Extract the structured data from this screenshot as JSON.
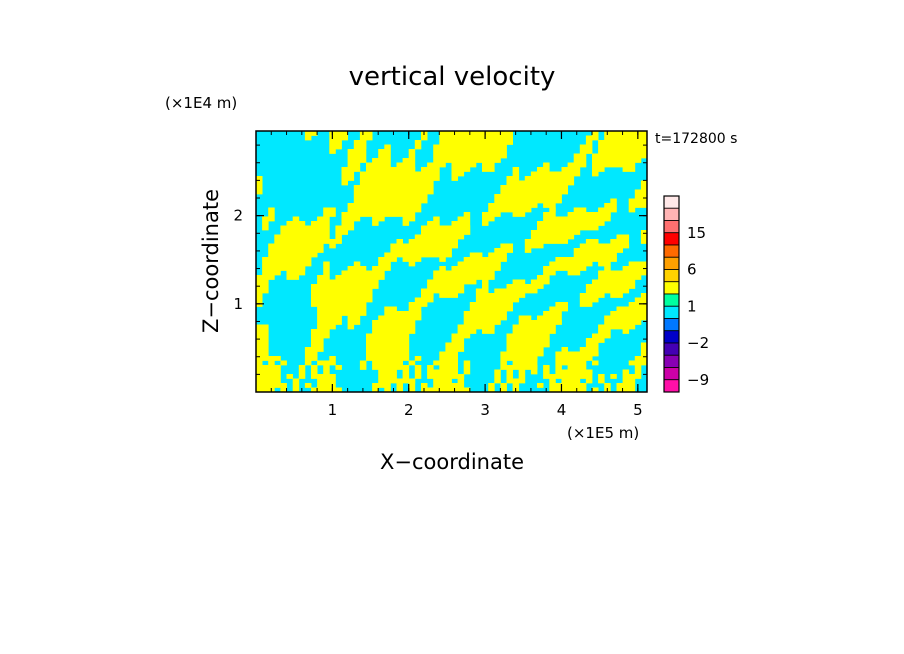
{
  "chart_data": {
    "type": "heatmap",
    "title": "vertical velocity",
    "xlabel": "X−coordinate",
    "ylabel": "Z−coordinate",
    "x_unit_label": "(×1E5 m)",
    "y_unit_label": "(×1E4 m)",
    "time_label": "t=172800 s",
    "xlim": [
      0,
      5.12
    ],
    "ylim": [
      0,
      2.96
    ],
    "x_ticks": [
      1,
      2,
      3,
      4,
      5
    ],
    "y_ticks": [
      1,
      2
    ],
    "field_colors": {
      "updraft": "#ffff00",
      "downdraft": "#00e8ff"
    },
    "colorbar": {
      "labels": [
        {
          "text": "15",
          "value": 15
        },
        {
          "text": "6",
          "value": 6
        },
        {
          "text": "1",
          "value": 1
        },
        {
          "text": "−2",
          "value": -2
        },
        {
          "text": "−9",
          "value": -9
        }
      ],
      "bands": [
        {
          "upper": 25,
          "color": "#ffe8e8"
        },
        {
          "upper": 18,
          "color": "#ffb4b4"
        },
        {
          "upper": 15,
          "color": "#ff7070"
        },
        {
          "upper": 12,
          "color": "#ff0000"
        },
        {
          "upper": 9,
          "color": "#ff6a00"
        },
        {
          "upper": 6,
          "color": "#ffa000"
        },
        {
          "upper": 3,
          "color": "#ffd200"
        },
        {
          "upper": 2,
          "color": "#ffff00"
        },
        {
          "upper": 1,
          "color": "#00ffa0"
        },
        {
          "upper": 0,
          "color": "#00e8ff"
        },
        {
          "upper": -1,
          "color": "#0078ff"
        },
        {
          "upper": -2,
          "color": "#0000c8"
        },
        {
          "upper": -3,
          "color": "#4400b4"
        },
        {
          "upper": -6,
          "color": "#8800b4"
        },
        {
          "upper": -9,
          "color": "#cc00a8"
        },
        {
          "upper": -12,
          "color": "#ff10a8"
        }
      ]
    }
  }
}
